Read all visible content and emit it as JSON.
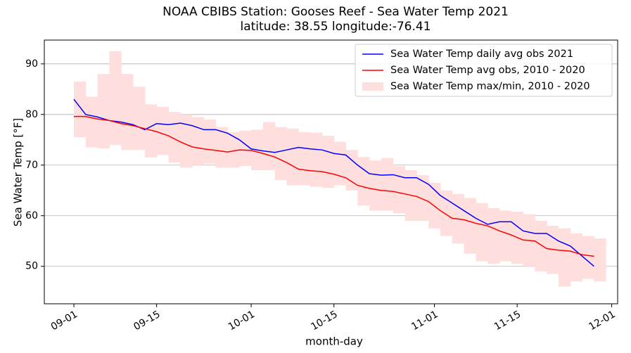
{
  "chart_data": {
    "type": "line",
    "title": "NOAA CBIBS Station: Gooses Reef - Sea Water Temp 2021",
    "subtitle": "latitude: 38.55 longitude:-76.41",
    "x_label": "month-day",
    "y_label": "Sea Water Temp [°F]",
    "x": [
      "09-01",
      "09-03",
      "09-05",
      "09-07",
      "09-09",
      "09-11",
      "09-13",
      "09-15",
      "09-17",
      "09-19",
      "09-21",
      "09-23",
      "09-25",
      "09-27",
      "09-29",
      "10-01",
      "10-03",
      "10-05",
      "10-07",
      "10-09",
      "10-11",
      "10-13",
      "10-15",
      "10-17",
      "10-19",
      "10-21",
      "10-23",
      "10-25",
      "10-27",
      "10-29",
      "10-31",
      "11-02",
      "11-04",
      "11-06",
      "11-08",
      "11-10",
      "11-12",
      "11-14",
      "11-16",
      "11-18",
      "11-20",
      "11-22",
      "11-24",
      "11-26",
      "11-28"
    ],
    "xlim": [
      "08-27",
      "12-02"
    ],
    "xticks": [
      "09-01",
      "09-15",
      "10-01",
      "10-15",
      "11-01",
      "11-15",
      "12-01"
    ],
    "ylim": [
      42.6,
      94.7
    ],
    "yticks": [
      50,
      60,
      70,
      80,
      90
    ],
    "grid": "y",
    "legend": "upper right",
    "series": [
      {
        "name": "Sea Water Temp daily avg obs 2021",
        "color": "#0000ff",
        "values": [
          83,
          80,
          79.5,
          78.8,
          78.5,
          78,
          77,
          78.2,
          78,
          78.3,
          77.8,
          77,
          77,
          76.3,
          75,
          73.2,
          72.8,
          72.5,
          73,
          73.5,
          73.2,
          73,
          72.3,
          72,
          70,
          68.3,
          68,
          68.1,
          67.5,
          67.5,
          66.2,
          64,
          62.5,
          61,
          59.5,
          58.3,
          58.8,
          58.8,
          57,
          56.5,
          56.5,
          55,
          54,
          52,
          50
        ]
      },
      {
        "name": "Sea Water Temp avg obs, 2010 - 2020",
        "color": "#ff0000",
        "values": [
          79.6,
          79.6,
          79.1,
          78.8,
          78.2,
          77.8,
          77.2,
          76.6,
          75.8,
          74.6,
          73.6,
          73.2,
          72.9,
          72.6,
          73,
          72.9,
          72.3,
          71.6,
          70.5,
          69.2,
          68.9,
          68.7,
          68.2,
          67.5,
          66,
          65.4,
          65,
          64.8,
          64.3,
          63.8,
          62.8,
          61,
          59.5,
          59.2,
          58.5,
          58,
          57,
          56.2,
          55.2,
          55,
          53.5,
          53.2,
          53,
          52.3,
          52
        ]
      },
      {
        "name": "Sea Water Temp max/min, 2010 - 2020",
        "type": "fill_between",
        "color": "#ffdede",
        "upper": [
          86.5,
          83.5,
          88,
          92.5,
          88,
          85.5,
          82,
          81.5,
          80.5,
          80,
          79.5,
          79,
          77.5,
          76.5,
          76.8,
          77,
          78.5,
          77.5,
          77.2,
          76.5,
          76.4,
          75.8,
          74.6,
          73,
          71.6,
          70.9,
          71.4,
          69.8,
          69,
          68,
          66.5,
          65,
          64.3,
          63.5,
          62.5,
          61.5,
          61,
          60.8,
          60.3,
          59,
          58,
          57.5,
          56.5,
          56,
          55.5
        ],
        "lower": [
          75.5,
          73.5,
          73.3,
          74,
          73,
          73,
          71.5,
          72,
          70.5,
          69.5,
          70,
          70.3,
          69.5,
          69.5,
          69.8,
          69,
          69,
          67,
          66,
          66,
          65.7,
          65.5,
          66,
          65,
          62,
          61,
          61,
          60.5,
          59,
          59,
          57.5,
          56,
          54.5,
          52.5,
          51,
          50.5,
          51,
          50.5,
          50,
          49,
          48.5,
          46,
          47,
          47.5,
          47
        ]
      }
    ]
  }
}
